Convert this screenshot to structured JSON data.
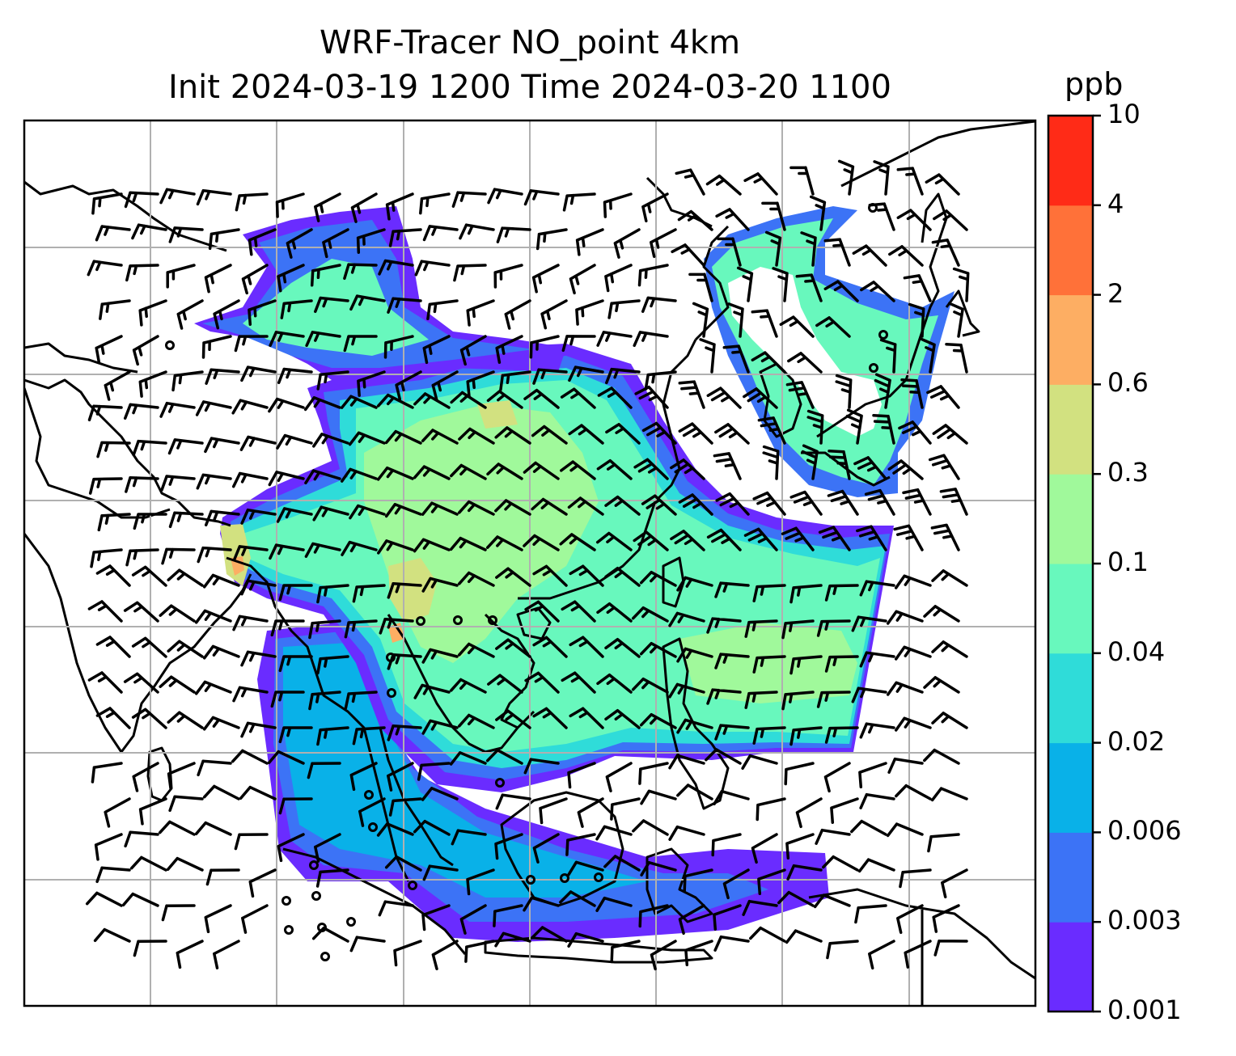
{
  "title": {
    "line1": "WRF-Tracer NO_point 4km",
    "line2": "Init 2024-03-19 1200 Time 2024-03-20 1100"
  },
  "colorbar": {
    "unit": "ppb",
    "tick_labels": [
      "0.001",
      "0.003",
      "0.006",
      "0.02",
      "0.04",
      "0.1",
      "0.3",
      "0.6",
      "2",
      "4",
      "10"
    ],
    "colors": [
      "#6a2cff",
      "#3c73f6",
      "#09b1e8",
      "#2fdcd9",
      "#68f8bd",
      "#a0f99b",
      "#d2e180",
      "#fdae63",
      "#ff7139",
      "#ff2b17"
    ]
  },
  "map": {
    "coastline_color": "#000000",
    "gridline_color": "#b0b0b0",
    "wind_barb_color": "#000000",
    "tracer_field": "NO_point",
    "resolution": "4km"
  }
}
